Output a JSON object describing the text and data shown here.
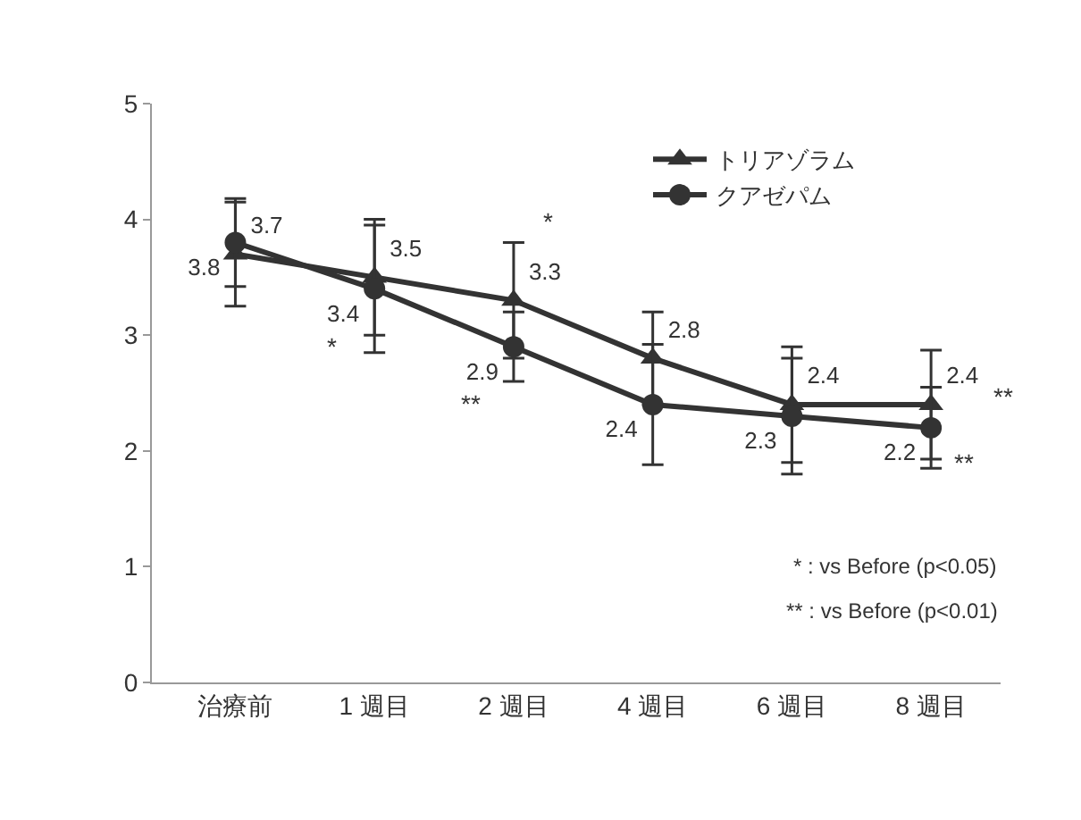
{
  "chart_data": {
    "type": "line",
    "categories": [
      "治療前",
      "1 週目",
      "2 週目",
      "4 週目",
      "6 週目",
      "8 週目"
    ],
    "series": [
      {
        "name": "トリアゾラム",
        "color": "#333333",
        "marker": "triangle",
        "values": [
          3.7,
          3.5,
          3.3,
          2.8,
          2.4,
          2.4
        ],
        "errors": [
          0.45,
          0.5,
          0.5,
          0.4,
          0.5,
          0.47
        ]
      },
      {
        "name": "クアゼパム",
        "color": "#333333",
        "marker": "circle",
        "values": [
          3.8,
          3.4,
          2.9,
          2.4,
          2.3,
          2.2
        ],
        "errors": [
          0.38,
          0.55,
          0.3,
          0.52,
          0.5,
          0.35
        ]
      }
    ],
    "ylim": [
      0,
      5
    ],
    "yticks": [
      0,
      1,
      2,
      3,
      4,
      5
    ],
    "grid": false,
    "legend": "top right",
    "data_labels": true,
    "annotations": [
      {
        "text": "*",
        "x": "1 週目",
        "y": 3.4
      },
      {
        "text": "*",
        "x": "2 週目",
        "y": 3.3
      },
      {
        "text": "**",
        "x": "2 週目",
        "y": 2.9
      },
      {
        "text": "**",
        "x": "8 週目",
        "y": 2.4
      },
      {
        "text": "**",
        "x": "8 週目",
        "y": 2.2
      },
      "* : vs Before (p<0.05)",
      "** : vs Before (p<0.01)"
    ]
  }
}
